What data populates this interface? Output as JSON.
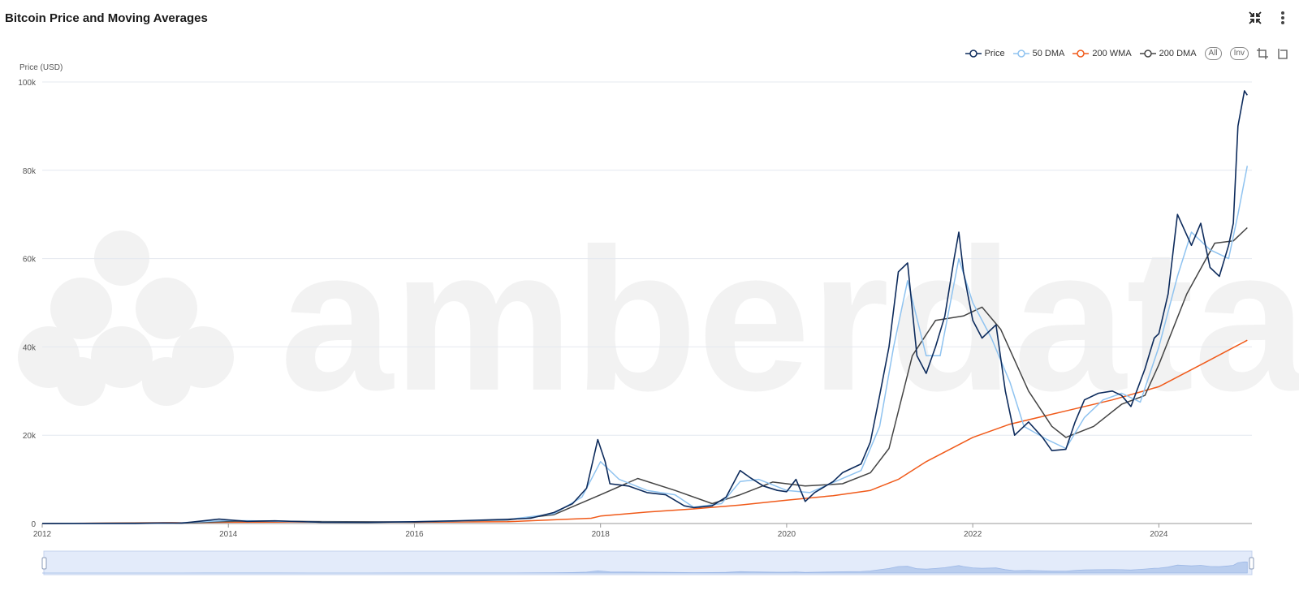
{
  "title": "Bitcoin Price and Moving Averages",
  "toolbar": {
    "expand_icon": "collapse-arrows-icon",
    "menu_icon": "kebab-menu-icon",
    "all_label": "All",
    "inv_label": "Inv"
  },
  "watermark": "amberdata",
  "chart_data": {
    "type": "line",
    "title": "Bitcoin Price and Moving Averages",
    "ylabel": "Price (USD)",
    "xlabel": "",
    "xlim": [
      2012,
      2025.0
    ],
    "ylim": [
      0,
      100000
    ],
    "x_ticks": [
      "2012",
      "2014",
      "2016",
      "2018",
      "2020",
      "2022",
      "2024"
    ],
    "y_ticks": [
      "0",
      "20k",
      "40k",
      "60k",
      "80k",
      "100k"
    ],
    "y_tick_values": [
      0,
      20000,
      40000,
      60000,
      80000,
      100000
    ],
    "x_tick_values": [
      2012,
      2014,
      2016,
      2018,
      2020,
      2022,
      2024
    ],
    "grid": true,
    "legend_position": "top-right",
    "series": [
      {
        "name": "Price",
        "color": "#0d2b5c",
        "points": [
          [
            2012.0,
            5
          ],
          [
            2013.0,
            13
          ],
          [
            2013.3,
            120
          ],
          [
            2013.5,
            80
          ],
          [
            2013.9,
            1000
          ],
          [
            2014.0,
            800
          ],
          [
            2014.2,
            500
          ],
          [
            2014.5,
            600
          ],
          [
            2015.0,
            300
          ],
          [
            2015.5,
            250
          ],
          [
            2016.0,
            400
          ],
          [
            2016.5,
            650
          ],
          [
            2017.0,
            950
          ],
          [
            2017.25,
            1200
          ],
          [
            2017.5,
            2500
          ],
          [
            2017.7,
            4500
          ],
          [
            2017.85,
            8000
          ],
          [
            2017.97,
            19000
          ],
          [
            2018.05,
            14000
          ],
          [
            2018.1,
            9000
          ],
          [
            2018.3,
            8500
          ],
          [
            2018.5,
            7000
          ],
          [
            2018.7,
            6500
          ],
          [
            2018.9,
            4000
          ],
          [
            2019.0,
            3600
          ],
          [
            2019.2,
            4000
          ],
          [
            2019.35,
            6000
          ],
          [
            2019.5,
            12000
          ],
          [
            2019.6,
            10500
          ],
          [
            2019.75,
            8500
          ],
          [
            2019.9,
            7500
          ],
          [
            2020.0,
            7200
          ],
          [
            2020.1,
            10000
          ],
          [
            2020.2,
            5000
          ],
          [
            2020.3,
            7000
          ],
          [
            2020.5,
            9500
          ],
          [
            2020.6,
            11500
          ],
          [
            2020.8,
            13500
          ],
          [
            2020.9,
            18500
          ],
          [
            2021.0,
            29000
          ],
          [
            2021.1,
            40000
          ],
          [
            2021.2,
            57000
          ],
          [
            2021.3,
            59000
          ],
          [
            2021.4,
            38000
          ],
          [
            2021.5,
            34000
          ],
          [
            2021.6,
            40000
          ],
          [
            2021.7,
            47000
          ],
          [
            2021.8,
            60000
          ],
          [
            2021.85,
            66000
          ],
          [
            2021.9,
            57000
          ],
          [
            2022.0,
            46000
          ],
          [
            2022.1,
            42000
          ],
          [
            2022.25,
            45000
          ],
          [
            2022.35,
            30000
          ],
          [
            2022.45,
            20000
          ],
          [
            2022.6,
            23000
          ],
          [
            2022.75,
            19500
          ],
          [
            2022.85,
            16500
          ],
          [
            2023.0,
            16800
          ],
          [
            2023.1,
            23000
          ],
          [
            2023.2,
            28000
          ],
          [
            2023.35,
            29500
          ],
          [
            2023.5,
            30000
          ],
          [
            2023.6,
            29000
          ],
          [
            2023.7,
            26500
          ],
          [
            2023.85,
            35000
          ],
          [
            2023.95,
            42000
          ],
          [
            2024.0,
            43000
          ],
          [
            2024.1,
            52000
          ],
          [
            2024.2,
            70000
          ],
          [
            2024.35,
            63000
          ],
          [
            2024.45,
            68000
          ],
          [
            2024.55,
            58000
          ],
          [
            2024.65,
            56000
          ],
          [
            2024.75,
            63000
          ],
          [
            2024.8,
            68000
          ],
          [
            2024.85,
            90000
          ],
          [
            2024.92,
            98000
          ],
          [
            2024.95,
            97000
          ]
        ]
      },
      {
        "name": "50 DMA",
        "color": "#8fc3f0",
        "points": [
          [
            2012.0,
            5
          ],
          [
            2013.0,
            12
          ],
          [
            2013.4,
            100
          ],
          [
            2014.0,
            700
          ],
          [
            2014.3,
            600
          ],
          [
            2015.0,
            320
          ],
          [
            2015.5,
            260
          ],
          [
            2016.0,
            400
          ],
          [
            2016.5,
            600
          ],
          [
            2017.0,
            900
          ],
          [
            2017.5,
            2200
          ],
          [
            2017.8,
            6000
          ],
          [
            2018.0,
            14000
          ],
          [
            2018.2,
            10000
          ],
          [
            2018.5,
            7500
          ],
          [
            2018.8,
            6500
          ],
          [
            2019.0,
            3700
          ],
          [
            2019.3,
            4500
          ],
          [
            2019.5,
            9500
          ],
          [
            2019.7,
            10000
          ],
          [
            2020.0,
            7500
          ],
          [
            2020.25,
            7000
          ],
          [
            2020.5,
            9300
          ],
          [
            2020.8,
            12000
          ],
          [
            2021.0,
            22000
          ],
          [
            2021.15,
            40000
          ],
          [
            2021.3,
            55000
          ],
          [
            2021.5,
            38000
          ],
          [
            2021.65,
            38000
          ],
          [
            2021.85,
            60000
          ],
          [
            2022.0,
            50000
          ],
          [
            2022.2,
            42000
          ],
          [
            2022.4,
            32000
          ],
          [
            2022.55,
            22000
          ],
          [
            2022.8,
            19000
          ],
          [
            2023.0,
            17000
          ],
          [
            2023.2,
            24000
          ],
          [
            2023.4,
            28000
          ],
          [
            2023.6,
            29500
          ],
          [
            2023.8,
            27500
          ],
          [
            2024.0,
            40000
          ],
          [
            2024.2,
            56000
          ],
          [
            2024.35,
            66000
          ],
          [
            2024.55,
            62000
          ],
          [
            2024.75,
            60000
          ],
          [
            2024.85,
            70000
          ],
          [
            2024.95,
            81000
          ]
        ]
      },
      {
        "name": "200 WMA",
        "color": "#f05a1a",
        "points": [
          [
            2012.0,
            5
          ],
          [
            2014.0,
            300
          ],
          [
            2015.0,
            350
          ],
          [
            2016.0,
            300
          ],
          [
            2017.0,
            400
          ],
          [
            2017.9,
            1200
          ],
          [
            2018.0,
            1700
          ],
          [
            2018.5,
            2600
          ],
          [
            2019.0,
            3300
          ],
          [
            2019.5,
            4200
          ],
          [
            2020.0,
            5300
          ],
          [
            2020.5,
            6300
          ],
          [
            2020.9,
            7500
          ],
          [
            2021.2,
            10000
          ],
          [
            2021.5,
            14000
          ],
          [
            2022.0,
            19500
          ],
          [
            2022.4,
            22500
          ],
          [
            2023.0,
            25500
          ],
          [
            2023.5,
            28000
          ],
          [
            2024.0,
            31000
          ],
          [
            2024.5,
            36500
          ],
          [
            2024.95,
            41500
          ]
        ]
      },
      {
        "name": "200 DMA",
        "color": "#444444",
        "points": [
          [
            2012.0,
            5
          ],
          [
            2013.5,
            150
          ],
          [
            2014.2,
            600
          ],
          [
            2015.0,
            450
          ],
          [
            2016.0,
            350
          ],
          [
            2017.0,
            800
          ],
          [
            2017.5,
            2000
          ],
          [
            2018.0,
            6500
          ],
          [
            2018.4,
            10200
          ],
          [
            2018.8,
            7500
          ],
          [
            2019.2,
            4500
          ],
          [
            2019.5,
            6500
          ],
          [
            2019.85,
            9400
          ],
          [
            2020.2,
            8500
          ],
          [
            2020.6,
            9000
          ],
          [
            2020.9,
            11500
          ],
          [
            2021.1,
            17000
          ],
          [
            2021.35,
            38000
          ],
          [
            2021.6,
            46000
          ],
          [
            2021.9,
            47000
          ],
          [
            2022.1,
            49000
          ],
          [
            2022.3,
            44000
          ],
          [
            2022.6,
            30000
          ],
          [
            2022.85,
            22000
          ],
          [
            2023.0,
            19500
          ],
          [
            2023.3,
            22000
          ],
          [
            2023.6,
            27000
          ],
          [
            2023.85,
            29000
          ],
          [
            2024.0,
            36000
          ],
          [
            2024.3,
            52000
          ],
          [
            2024.6,
            63500
          ],
          [
            2024.8,
            64000
          ],
          [
            2024.95,
            67000
          ]
        ]
      }
    ]
  }
}
